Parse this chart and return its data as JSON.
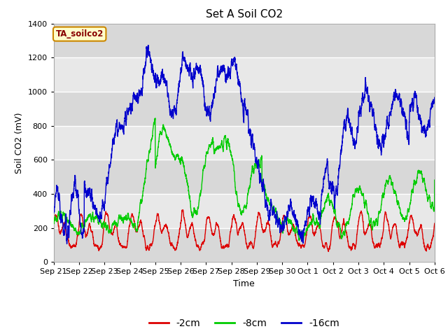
{
  "title": "Set A Soil CO2",
  "ylabel": "Soil CO2 (mV)",
  "xlabel": "Time",
  "ylim": [
    0,
    1400
  ],
  "yticks": [
    0,
    200,
    400,
    600,
    800,
    1000,
    1200,
    1400
  ],
  "xtick_labels": [
    "Sep 21",
    "Sep 22",
    "Sep 23",
    "Sep 24",
    "Sep 25",
    "Sep 26",
    "Sep 27",
    "Sep 28",
    "Sep 29",
    "Sep 30",
    "Oct 1",
    "Oct 2",
    "Oct 3",
    "Oct 4",
    "Oct 5",
    "Oct 6"
  ],
  "legend_entries": [
    "-2cm",
    "-8cm",
    "-16cm"
  ],
  "legend_colors": [
    "#dd0000",
    "#00cc00",
    "#0000cc"
  ],
  "box_label": "TA_soilco2",
  "box_facecolor": "#ffffcc",
  "box_edgecolor": "#cc8800",
  "box_textcolor": "#880000",
  "line_colors": [
    "#dd0000",
    "#00cc00",
    "#0000cc"
  ],
  "bg_color": "#d8d8d8",
  "band_colors": [
    "#d8d8d8",
    "#e8e8e8"
  ],
  "grid_color": "#ffffff",
  "fig_facecolor": "#ffffff",
  "title_fontsize": 11,
  "axis_fontsize": 9,
  "tick_fontsize": 8
}
